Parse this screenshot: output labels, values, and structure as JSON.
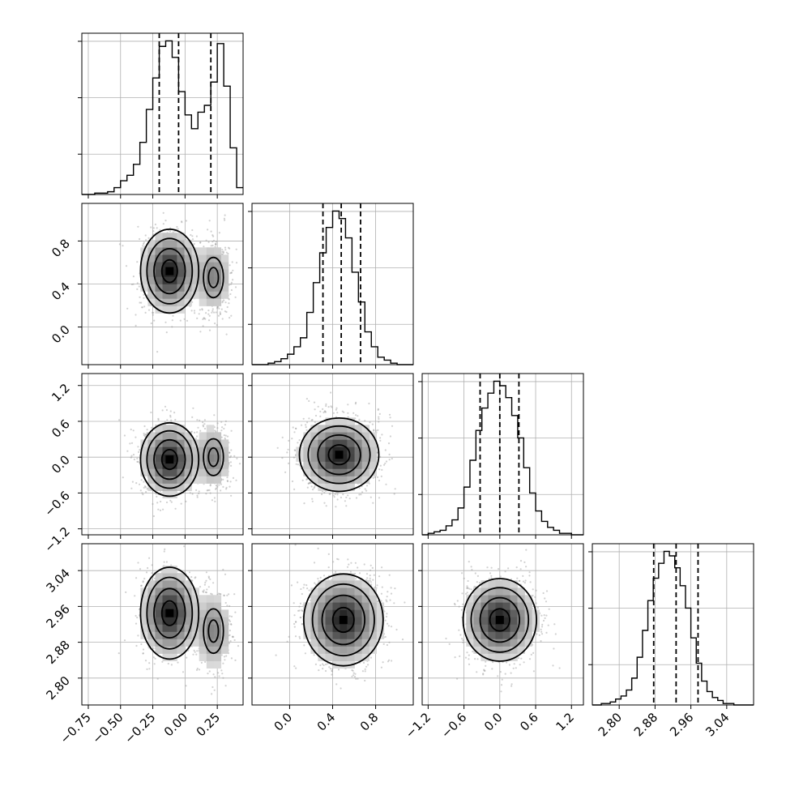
{
  "chart_data": {
    "type": "corner",
    "ticks": {
      "p0": [
        "−0.75",
        "−0.50",
        "−0.25",
        "0.00",
        "0.25"
      ],
      "p1": [
        "0.0",
        "0.4",
        "0.8"
      ],
      "p2": [
        "−1.2",
        "−0.6",
        "0.0",
        "0.6",
        "1.2"
      ],
      "p3": [
        "2.80",
        "2.88",
        "2.96",
        "3.04"
      ]
    },
    "tick_values": {
      "p0": [
        -0.75,
        -0.5,
        -0.25,
        0.0,
        0.25
      ],
      "p1": [
        0.0,
        0.4,
        0.8
      ],
      "p2": [
        -1.2,
        -0.6,
        0.0,
        0.6,
        1.2
      ],
      "p3": [
        2.8,
        2.88,
        2.96,
        3.04
      ]
    },
    "ranges": {
      "p0": [
        -0.8,
        0.45
      ],
      "p1": [
        -0.35,
        1.15
      ],
      "p2": [
        -1.3,
        1.4
      ],
      "p3": [
        2.74,
        3.1
      ]
    },
    "grid": true,
    "histograms": [
      {
        "param": "p0",
        "bin_edges": [
          -0.8,
          -0.75,
          -0.7,
          -0.65,
          -0.6,
          -0.55,
          -0.5,
          -0.45,
          -0.4,
          -0.35,
          -0.3,
          -0.25,
          -0.2,
          -0.15,
          -0.1,
          -0.05,
          0.0,
          0.05,
          0.1,
          0.15,
          0.2,
          0.25,
          0.3,
          0.35,
          0.4,
          0.45
        ],
        "counts": [
          0,
          0,
          1,
          1,
          2,
          5,
          10,
          14,
          22,
          38,
          62,
          85,
          108,
          112,
          100,
          75,
          58,
          48,
          60,
          65,
          82,
          110,
          79,
          34,
          5
        ],
        "quantiles": [
          -0.2,
          -0.05,
          0.2
        ]
      },
      {
        "param": "p1",
        "bin_edges": [
          -0.35,
          -0.2,
          -0.14,
          -0.08,
          -0.02,
          0.04,
          0.1,
          0.16,
          0.22,
          0.28,
          0.34,
          0.4,
          0.46,
          0.52,
          0.58,
          0.64,
          0.7,
          0.76,
          0.82,
          0.88,
          0.94,
          1.0,
          1.06,
          1.15
        ],
        "counts": [
          0,
          1,
          2,
          4,
          7,
          12,
          18,
          35,
          55,
          75,
          92,
          103,
          98,
          85,
          62,
          42,
          22,
          12,
          5,
          3,
          1,
          0,
          0
        ],
        "quantiles": [
          0.31,
          0.48,
          0.66
        ]
      },
      {
        "param": "p2",
        "bin_edges": [
          -1.3,
          -1.2,
          -1.1,
          -1.0,
          -0.9,
          -0.8,
          -0.7,
          -0.6,
          -0.5,
          -0.4,
          -0.3,
          -0.2,
          -0.1,
          0.0,
          0.1,
          0.2,
          0.3,
          0.4,
          0.5,
          0.6,
          0.7,
          0.8,
          0.9,
          1.0,
          1.1,
          1.2,
          1.3,
          1.4
        ],
        "counts": [
          0,
          1,
          2,
          3,
          6,
          10,
          18,
          32,
          50,
          70,
          85,
          95,
          103,
          100,
          92,
          80,
          65,
          45,
          28,
          16,
          9,
          5,
          3,
          1,
          1,
          0,
          0
        ],
        "quantiles": [
          -0.33,
          0.0,
          0.32
        ]
      },
      {
        "param": "p3",
        "bin_edges": [
          2.74,
          2.76,
          2.78,
          2.792,
          2.804,
          2.816,
          2.828,
          2.84,
          2.852,
          2.864,
          2.876,
          2.888,
          2.9,
          2.912,
          2.924,
          2.936,
          2.948,
          2.96,
          2.972,
          2.984,
          2.996,
          3.008,
          3.02,
          3.032,
          3.044,
          3.056,
          3.068,
          3.08,
          3.1
        ],
        "counts": [
          0,
          1,
          2,
          4,
          6,
          10,
          18,
          32,
          50,
          70,
          85,
          95,
          103,
          100,
          92,
          80,
          65,
          45,
          28,
          16,
          9,
          5,
          3,
          1,
          1,
          0,
          0,
          0
        ],
        "quantiles": [
          2.877,
          2.927,
          2.976
        ]
      }
    ],
    "pairs": [
      {
        "x": "p0",
        "y": "p1",
        "modes": [
          {
            "center": [
              -0.12,
              0.52
            ],
            "sigma": [
              0.11,
              0.19
            ],
            "weight": 1.0
          },
          {
            "center": [
              0.22,
              0.46
            ],
            "sigma": [
              0.07,
              0.17
            ],
            "weight": 0.55
          }
        ]
      },
      {
        "x": "p0",
        "y": "p2",
        "modes": [
          {
            "center": [
              -0.12,
              -0.04
            ],
            "sigma": [
              0.11,
              0.3
            ],
            "weight": 1.0
          },
          {
            "center": [
              0.22,
              0.0
            ],
            "sigma": [
              0.07,
              0.28
            ],
            "weight": 0.55
          }
        ]
      },
      {
        "x": "p1",
        "y": "p2",
        "modes": [
          {
            "center": [
              0.46,
              0.04
            ],
            "sigma": [
              0.18,
              0.3
            ],
            "weight": 1.0
          }
        ]
      },
      {
        "x": "p0",
        "y": "p3",
        "modes": [
          {
            "center": [
              -0.12,
              2.945
            ],
            "sigma": [
              0.11,
              0.05
            ],
            "weight": 1.0
          },
          {
            "center": [
              0.22,
              2.905
            ],
            "sigma": [
              0.07,
              0.045
            ],
            "weight": 0.55
          }
        ]
      },
      {
        "x": "p1",
        "y": "p3",
        "modes": [
          {
            "center": [
              0.5,
              2.93
            ],
            "sigma": [
              0.18,
              0.05
            ],
            "weight": 1.0
          }
        ]
      },
      {
        "x": "p2",
        "y": "p3",
        "modes": [
          {
            "center": [
              0.0,
              2.93
            ],
            "sigma": [
              0.3,
              0.045
            ],
            "weight": 1.0
          }
        ]
      }
    ]
  }
}
